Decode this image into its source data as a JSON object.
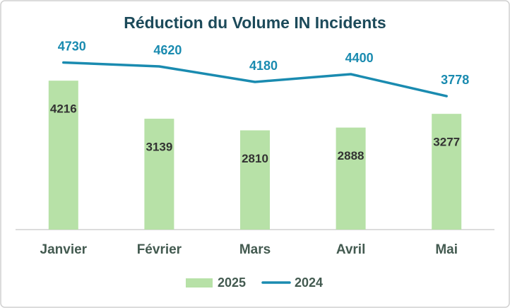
{
  "chart_data": {
    "type": "bar",
    "title": "Réduction du Volume IN Incidents",
    "categories": [
      "Janvier",
      "Février",
      "Mars",
      "Avril",
      "Mai"
    ],
    "series": [
      {
        "name": "2025",
        "type": "bar",
        "color": "#b7e1a7",
        "values": [
          4216,
          3139,
          2810,
          2888,
          3277
        ]
      },
      {
        "name": "2024",
        "type": "line",
        "color": "#1a8bb0",
        "values": [
          4730,
          4620,
          4180,
          4400,
          3778
        ]
      }
    ],
    "ylim": [
      0,
      5000
    ],
    "legend": "bottom"
  }
}
